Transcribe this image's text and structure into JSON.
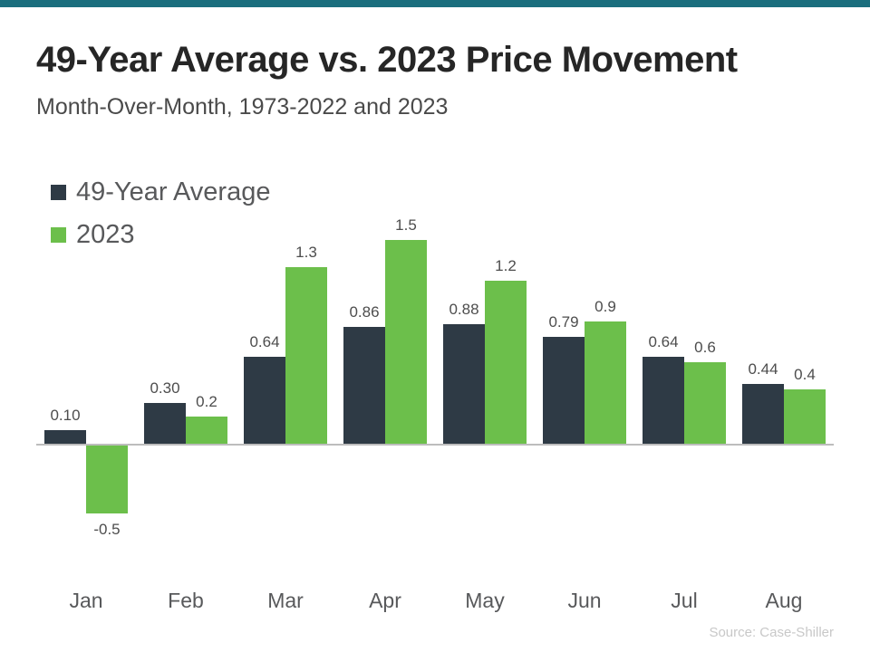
{
  "page": {
    "title": "49-Year Average vs. 2023 Price Movement",
    "subtitle": "Month-Over-Month, 1973-2022 and 2023",
    "source": "Source: Case-Shiller"
  },
  "colors": {
    "accent_bar": "#1a6e7d",
    "series1": "#2e3a45",
    "series2": "#6cbf4b",
    "axis_line": "#bdbdbd"
  },
  "chart_data": {
    "type": "bar",
    "categories": [
      "Jan",
      "Feb",
      "Mar",
      "Apr",
      "May",
      "Jun",
      "Jul",
      "Aug"
    ],
    "series": [
      {
        "name": "49-Year Average",
        "color": "#2e3a45",
        "values": [
          0.1,
          0.3,
          0.64,
          0.86,
          0.88,
          0.79,
          0.64,
          0.44
        ],
        "labels": [
          "0.10",
          "0.30",
          "0.64",
          "0.86",
          "0.88",
          "0.79",
          "0.64",
          "0.44"
        ]
      },
      {
        "name": "2023",
        "color": "#6cbf4b",
        "values": [
          -0.5,
          0.2,
          1.3,
          1.5,
          1.2,
          0.9,
          0.6,
          0.4
        ],
        "labels": [
          "-0.5",
          "0.2",
          "1.3",
          "1.5",
          "1.2",
          "0.9",
          "0.6",
          "0.4"
        ]
      }
    ],
    "title": "49-Year Average vs. 2023 Price Movement",
    "xlabel": "",
    "ylabel": "",
    "ylim": [
      -0.7,
      1.7
    ],
    "grid": false,
    "legend_position": "top-left"
  }
}
